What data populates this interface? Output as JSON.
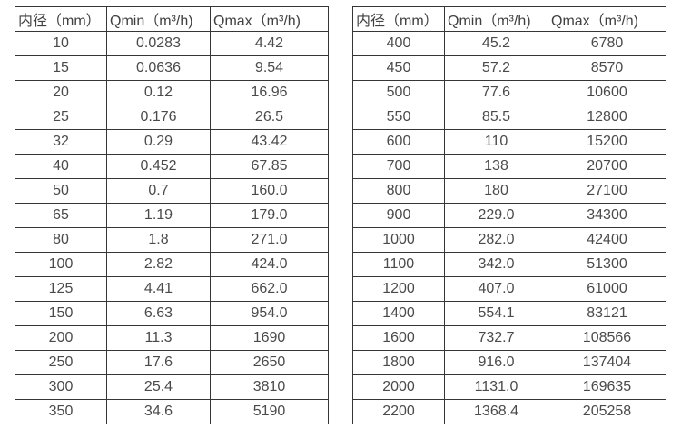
{
  "colors": {
    "border": "#363636",
    "text": "#4a4a4a",
    "background": "#ffffff"
  },
  "header": {
    "col_diameter": "内径（mm）",
    "col_qmin": "Qmin（m³/h)",
    "col_qmax": "Qmax（m³/h)"
  },
  "tables": {
    "left": {
      "rows": [
        [
          "10",
          "0.0283",
          "4.42"
        ],
        [
          "15",
          "0.0636",
          "9.54"
        ],
        [
          "20",
          "0.12",
          "16.96"
        ],
        [
          "25",
          "0.176",
          "26.5"
        ],
        [
          "32",
          "0.29",
          "43.42"
        ],
        [
          "40",
          "0.452",
          "67.85"
        ],
        [
          "50",
          "0.7",
          "160.0"
        ],
        [
          "65",
          "1.19",
          "179.0"
        ],
        [
          "80",
          "1.8",
          "271.0"
        ],
        [
          "100",
          "2.82",
          "424.0"
        ],
        [
          "125",
          "4.41",
          "662.0"
        ],
        [
          "150",
          "6.63",
          "954.0"
        ],
        [
          "200",
          "11.3",
          "1690"
        ],
        [
          "250",
          "17.6",
          "2650"
        ],
        [
          "300",
          "25.4",
          "3810"
        ],
        [
          "350",
          "34.6",
          "5190"
        ]
      ]
    },
    "right": {
      "rows": [
        [
          "400",
          "45.2",
          "6780"
        ],
        [
          "450",
          "57.2",
          "8570"
        ],
        [
          "500",
          "77.6",
          "10600"
        ],
        [
          "550",
          "85.5",
          "12800"
        ],
        [
          "600",
          "110",
          "15200"
        ],
        [
          "700",
          "138",
          "20700"
        ],
        [
          "800",
          "180",
          "27100"
        ],
        [
          "900",
          "229.0",
          "34300"
        ],
        [
          "1000",
          "282.0",
          "42400"
        ],
        [
          "1100",
          "342.0",
          "51300"
        ],
        [
          "1200",
          "407.0",
          "61000"
        ],
        [
          "1400",
          "554.1",
          "83121"
        ],
        [
          "1600",
          "732.7",
          "108566"
        ],
        [
          "1800",
          "916.0",
          "137404"
        ],
        [
          "2000",
          "1131.0",
          "169635"
        ],
        [
          "2200",
          "1368.4",
          "205258"
        ]
      ]
    }
  }
}
